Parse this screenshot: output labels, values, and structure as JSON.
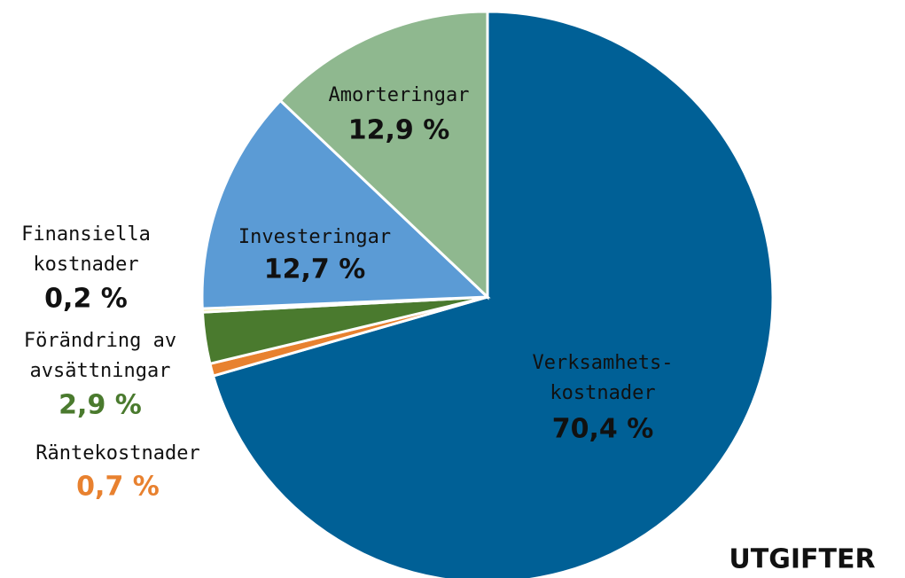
{
  "chart_data": {
    "type": "pie",
    "title": "UTGIFTER",
    "categories": [
      "Verksamhets-\nkostnader",
      "Räntekostnader",
      "Förändring av\navsättningar",
      "Finansiella\nkostnader",
      "Investeringar",
      "Amorteringar"
    ],
    "values": [
      70.4,
      0.7,
      2.9,
      0.2,
      12.7,
      12.9
    ],
    "value_labels": [
      "70,4 %",
      "0,7 %",
      "2,9 %",
      "0,2 %",
      "12,7 %",
      "12,9 %"
    ],
    "colors": [
      "#006096",
      "#e8812f",
      "#4a7a2e",
      "#f2eaa6",
      "#5b9bd5",
      "#8fb88f"
    ]
  }
}
